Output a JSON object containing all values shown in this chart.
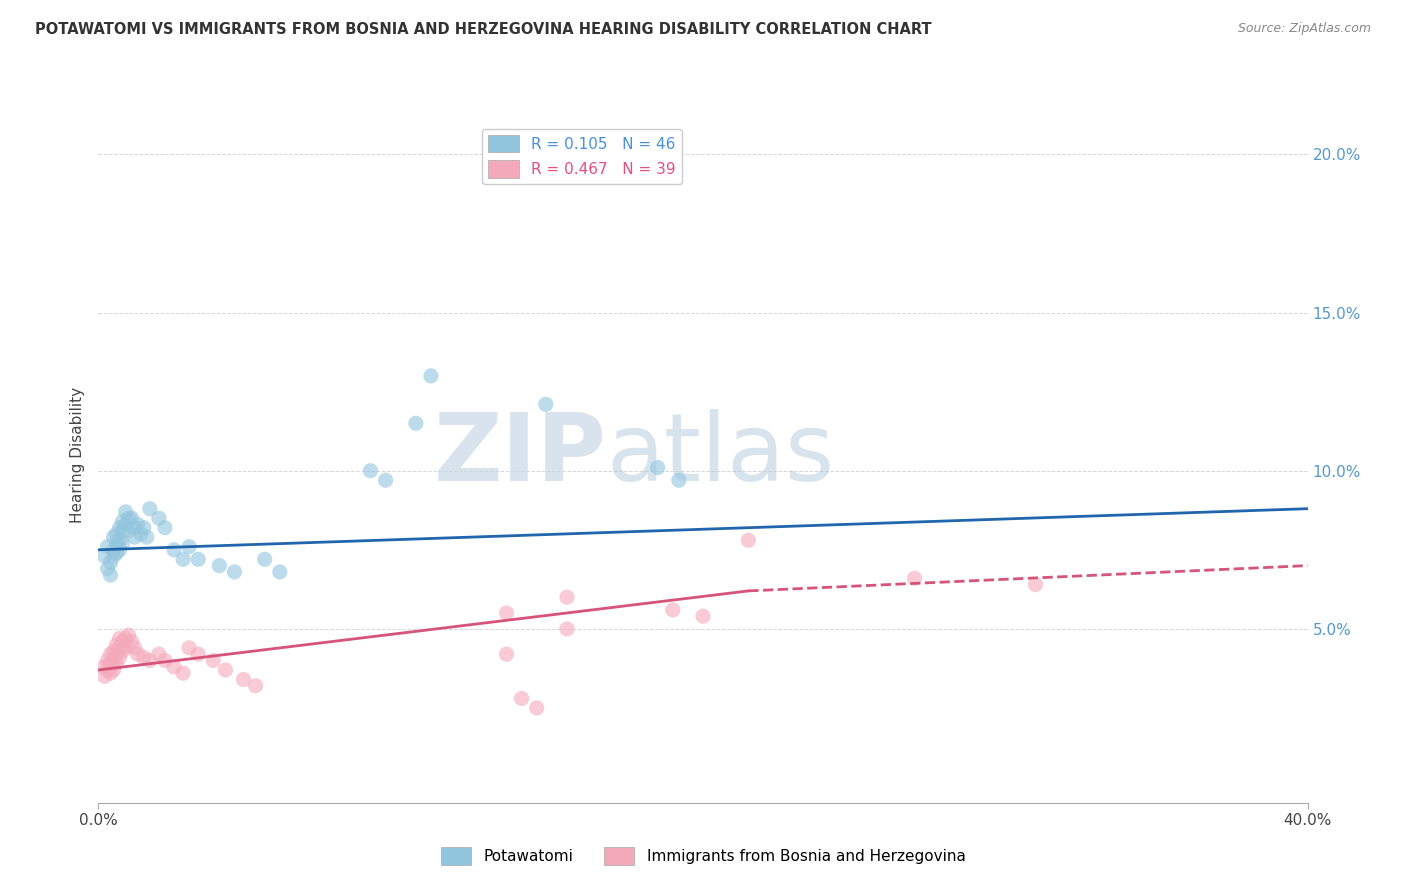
{
  "title": "POTAWATOMI VS IMMIGRANTS FROM BOSNIA AND HERZEGOVINA HEARING DISABILITY CORRELATION CHART",
  "source": "Source: ZipAtlas.com",
  "ylabel": "Hearing Disability",
  "ytick_values": [
    0.05,
    0.1,
    0.15,
    0.2
  ],
  "xlim": [
    0.0,
    0.4
  ],
  "ylim": [
    -0.005,
    0.215
  ],
  "blue_color": "#92c5de",
  "pink_color": "#f4a9bb",
  "blue_line_color": "#2166ac",
  "pink_line_color": "#d6537a",
  "blue_scatter": [
    [
      0.002,
      0.073
    ],
    [
      0.003,
      0.069
    ],
    [
      0.003,
      0.076
    ],
    [
      0.004,
      0.071
    ],
    [
      0.004,
      0.067
    ],
    [
      0.005,
      0.079
    ],
    [
      0.005,
      0.075
    ],
    [
      0.005,
      0.073
    ],
    [
      0.006,
      0.08
    ],
    [
      0.006,
      0.077
    ],
    [
      0.006,
      0.074
    ],
    [
      0.007,
      0.082
    ],
    [
      0.007,
      0.078
    ],
    [
      0.007,
      0.075
    ],
    [
      0.008,
      0.084
    ],
    [
      0.008,
      0.081
    ],
    [
      0.008,
      0.077
    ],
    [
      0.009,
      0.087
    ],
    [
      0.009,
      0.083
    ],
    [
      0.01,
      0.085
    ],
    [
      0.01,
      0.081
    ],
    [
      0.011,
      0.085
    ],
    [
      0.012,
      0.082
    ],
    [
      0.012,
      0.079
    ],
    [
      0.013,
      0.083
    ],
    [
      0.014,
      0.08
    ],
    [
      0.015,
      0.082
    ],
    [
      0.016,
      0.079
    ],
    [
      0.017,
      0.088
    ],
    [
      0.02,
      0.085
    ],
    [
      0.022,
      0.082
    ],
    [
      0.025,
      0.075
    ],
    [
      0.028,
      0.072
    ],
    [
      0.03,
      0.076
    ],
    [
      0.033,
      0.072
    ],
    [
      0.04,
      0.07
    ],
    [
      0.045,
      0.068
    ],
    [
      0.055,
      0.072
    ],
    [
      0.06,
      0.068
    ],
    [
      0.09,
      0.1
    ],
    [
      0.095,
      0.097
    ],
    [
      0.105,
      0.115
    ],
    [
      0.11,
      0.13
    ],
    [
      0.148,
      0.121
    ],
    [
      0.185,
      0.101
    ],
    [
      0.192,
      0.097
    ]
  ],
  "pink_scatter": [
    [
      0.002,
      0.038
    ],
    [
      0.002,
      0.035
    ],
    [
      0.003,
      0.04
    ],
    [
      0.003,
      0.037
    ],
    [
      0.004,
      0.042
    ],
    [
      0.004,
      0.039
    ],
    [
      0.004,
      0.036
    ],
    [
      0.005,
      0.043
    ],
    [
      0.005,
      0.04
    ],
    [
      0.005,
      0.037
    ],
    [
      0.006,
      0.045
    ],
    [
      0.006,
      0.042
    ],
    [
      0.006,
      0.039
    ],
    [
      0.007,
      0.047
    ],
    [
      0.007,
      0.044
    ],
    [
      0.007,
      0.041
    ],
    [
      0.008,
      0.046
    ],
    [
      0.008,
      0.043
    ],
    [
      0.009,
      0.047
    ],
    [
      0.009,
      0.044
    ],
    [
      0.01,
      0.048
    ],
    [
      0.011,
      0.046
    ],
    [
      0.012,
      0.044
    ],
    [
      0.013,
      0.042
    ],
    [
      0.015,
      0.041
    ],
    [
      0.017,
      0.04
    ],
    [
      0.02,
      0.042
    ],
    [
      0.022,
      0.04
    ],
    [
      0.025,
      0.038
    ],
    [
      0.028,
      0.036
    ],
    [
      0.03,
      0.044
    ],
    [
      0.033,
      0.042
    ],
    [
      0.038,
      0.04
    ],
    [
      0.042,
      0.037
    ],
    [
      0.048,
      0.034
    ],
    [
      0.052,
      0.032
    ],
    [
      0.135,
      0.055
    ],
    [
      0.155,
      0.06
    ],
    [
      0.215,
      0.078
    ],
    [
      0.135,
      0.042
    ],
    [
      0.155,
      0.05
    ],
    [
      0.19,
      0.056
    ],
    [
      0.2,
      0.054
    ],
    [
      0.27,
      0.066
    ],
    [
      0.31,
      0.064
    ],
    [
      0.14,
      0.028
    ],
    [
      0.145,
      0.025
    ]
  ],
  "blue_trendline": [
    [
      0.0,
      0.075
    ],
    [
      0.4,
      0.088
    ]
  ],
  "pink_trendline_solid": [
    [
      0.0,
      0.037
    ],
    [
      0.215,
      0.062
    ]
  ],
  "pink_trendline_dashed": [
    [
      0.215,
      0.062
    ],
    [
      0.4,
      0.07
    ]
  ],
  "watermark_zip": "ZIP",
  "watermark_atlas": "atlas",
  "figsize": [
    14.06,
    8.92
  ],
  "dpi": 100
}
